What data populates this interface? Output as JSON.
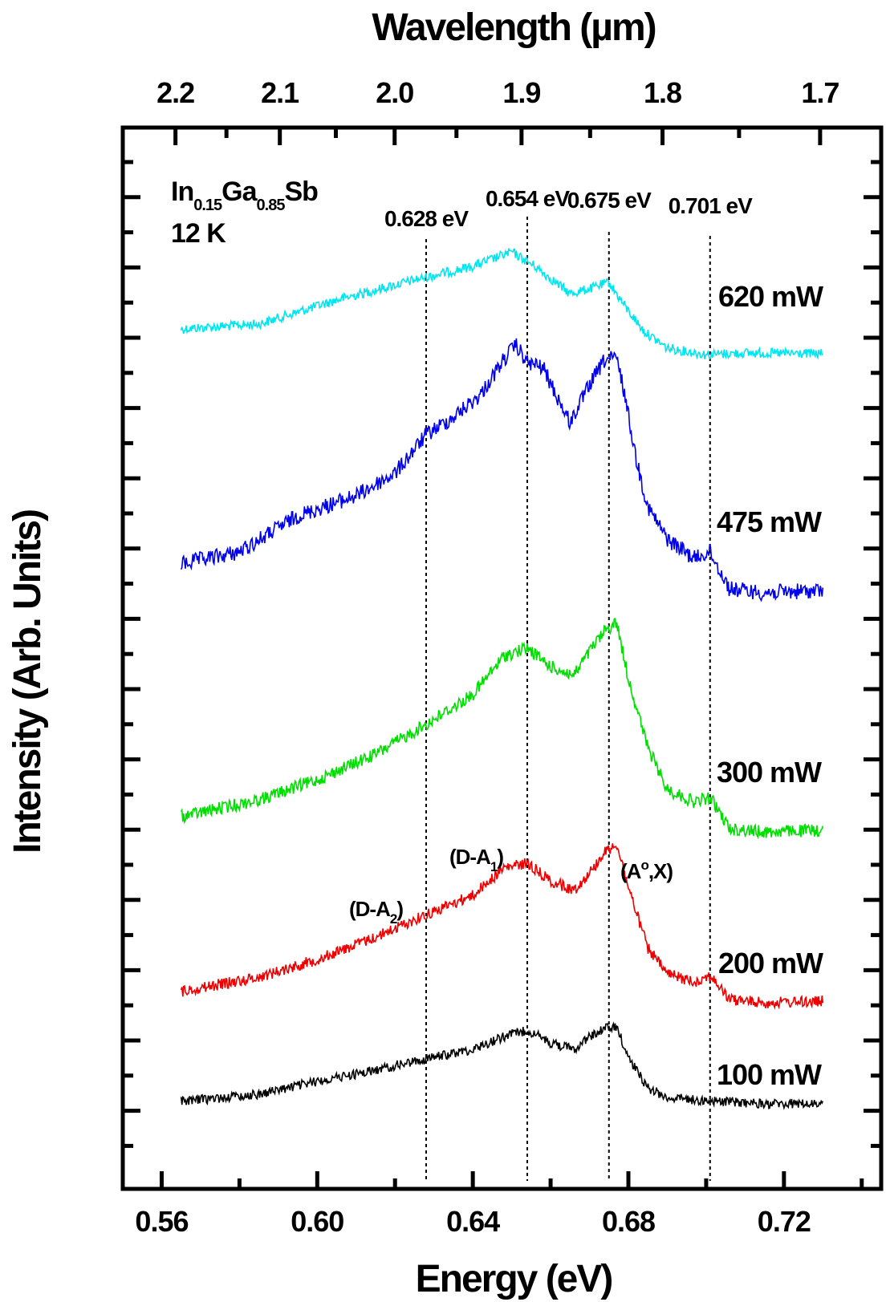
{
  "chart_data": {
    "type": "line",
    "title": "",
    "xlabel": "Energy (eV)",
    "ylabel": "Intensity (Arb. Units)",
    "top_axis_label": "Wavelength (µm)",
    "xlim": [
      0.55,
      0.745
    ],
    "x_ticks": [
      "0.56",
      "0.60",
      "0.64",
      "0.68",
      "0.72"
    ],
    "top_ticks": [
      {
        "label": "2.2",
        "value": 2.2
      },
      {
        "label": "2.1",
        "value": 2.1
      },
      {
        "label": "2.0",
        "value": 2.0
      },
      {
        "label": "1.9",
        "value": 1.9
      },
      {
        "label": "1.8",
        "value": 1.8
      },
      {
        "label": "1.7",
        "value": 1.7
      }
    ],
    "grid": false,
    "sample": {
      "material_base": "In",
      "sub1": "0.15",
      "mid": "Ga",
      "sub2": "0.85",
      "end": "Sb",
      "temperature": "12 K"
    },
    "marker_lines": [
      {
        "x": 0.628,
        "label": "0.628 eV"
      },
      {
        "x": 0.654,
        "label": "0.654 eV"
      },
      {
        "x": 0.675,
        "label": "0.675 eV"
      },
      {
        "x": 0.701,
        "label": "0.701 eV"
      }
    ],
    "peak_labels": {
      "da2_main": "(D-A",
      "da2_sub": "2",
      "da2_close": ")",
      "da1_main": "(D-A",
      "da1_sub": "1",
      "da1_close": ")",
      "aox_main": "(A",
      "aox_sup": "o",
      "aox_rest": ",X)"
    },
    "series": [
      {
        "name": "620 mW",
        "color": "#00e5f0",
        "points": [
          [
            0.565,
            410
          ],
          [
            0.585,
            404
          ],
          [
            0.605,
            374
          ],
          [
            0.625,
            349
          ],
          [
            0.64,
            332
          ],
          [
            0.65,
            314
          ],
          [
            0.656,
            332
          ],
          [
            0.665,
            366
          ],
          [
            0.67,
            360
          ],
          [
            0.675,
            352
          ],
          [
            0.679,
            381
          ],
          [
            0.684,
            413
          ],
          [
            0.69,
            434
          ],
          [
            0.7,
            442
          ],
          [
            0.71,
            440
          ],
          [
            0.73,
            441
          ]
        ]
      },
      {
        "name": "475 mW",
        "color": "#0000ee",
        "points": [
          [
            0.565,
            703
          ],
          [
            0.58,
            688
          ],
          [
            0.595,
            643
          ],
          [
            0.61,
            618
          ],
          [
            0.62,
            590
          ],
          [
            0.628,
            542
          ],
          [
            0.635,
            520
          ],
          [
            0.642,
            492
          ],
          [
            0.648,
            448
          ],
          [
            0.651,
            430
          ],
          [
            0.654,
            452
          ],
          [
            0.658,
            458
          ],
          [
            0.662,
            498
          ],
          [
            0.665,
            527
          ],
          [
            0.67,
            480
          ],
          [
            0.674,
            448
          ],
          [
            0.677,
            447
          ],
          [
            0.679,
            490
          ],
          [
            0.682,
            572
          ],
          [
            0.685,
            632
          ],
          [
            0.69,
            672
          ],
          [
            0.697,
            696
          ],
          [
            0.701,
            688
          ],
          [
            0.706,
            734
          ],
          [
            0.715,
            739
          ],
          [
            0.73,
            736
          ]
        ]
      },
      {
        "name": "300 mW",
        "color": "#00dd00",
        "points": [
          [
            0.565,
            1018
          ],
          [
            0.585,
            997
          ],
          [
            0.6,
            972
          ],
          [
            0.615,
            940
          ],
          [
            0.628,
            903
          ],
          [
            0.64,
            866
          ],
          [
            0.648,
            818
          ],
          [
            0.654,
            808
          ],
          [
            0.66,
            831
          ],
          [
            0.666,
            842
          ],
          [
            0.67,
            812
          ],
          [
            0.674,
            786
          ],
          [
            0.677,
            776
          ],
          [
            0.68,
            846
          ],
          [
            0.685,
            932
          ],
          [
            0.69,
            984
          ],
          [
            0.697,
            1000
          ],
          [
            0.701,
            994
          ],
          [
            0.706,
            1033
          ],
          [
            0.715,
            1037
          ],
          [
            0.73,
            1035
          ]
        ]
      },
      {
        "name": "200 mW",
        "color": "#ee0000",
        "points": [
          [
            0.565,
            1236
          ],
          [
            0.585,
            1218
          ],
          [
            0.6,
            1196
          ],
          [
            0.615,
            1168
          ],
          [
            0.628,
            1140
          ],
          [
            0.64,
            1116
          ],
          [
            0.648,
            1082
          ],
          [
            0.654,
            1076
          ],
          [
            0.66,
            1098
          ],
          [
            0.666,
            1110
          ],
          [
            0.67,
            1088
          ],
          [
            0.674,
            1062
          ],
          [
            0.677,
            1052
          ],
          [
            0.68,
            1106
          ],
          [
            0.685,
            1182
          ],
          [
            0.69,
            1214
          ],
          [
            0.697,
            1224
          ],
          [
            0.701,
            1216
          ],
          [
            0.706,
            1246
          ],
          [
            0.715,
            1250
          ],
          [
            0.73,
            1248
          ]
        ]
      },
      {
        "name": "100 mW",
        "color": "#000000",
        "points": [
          [
            0.565,
            1373
          ],
          [
            0.585,
            1364
          ],
          [
            0.6,
            1348
          ],
          [
            0.615,
            1334
          ],
          [
            0.628,
            1320
          ],
          [
            0.64,
            1308
          ],
          [
            0.648,
            1292
          ],
          [
            0.654,
            1284
          ],
          [
            0.66,
            1300
          ],
          [
            0.666,
            1308
          ],
          [
            0.67,
            1292
          ],
          [
            0.674,
            1282
          ],
          [
            0.677,
            1280
          ],
          [
            0.68,
            1318
          ],
          [
            0.685,
            1356
          ],
          [
            0.69,
            1368
          ],
          [
            0.7,
            1372
          ],
          [
            0.715,
            1376
          ],
          [
            0.73,
            1376
          ]
        ]
      }
    ]
  }
}
